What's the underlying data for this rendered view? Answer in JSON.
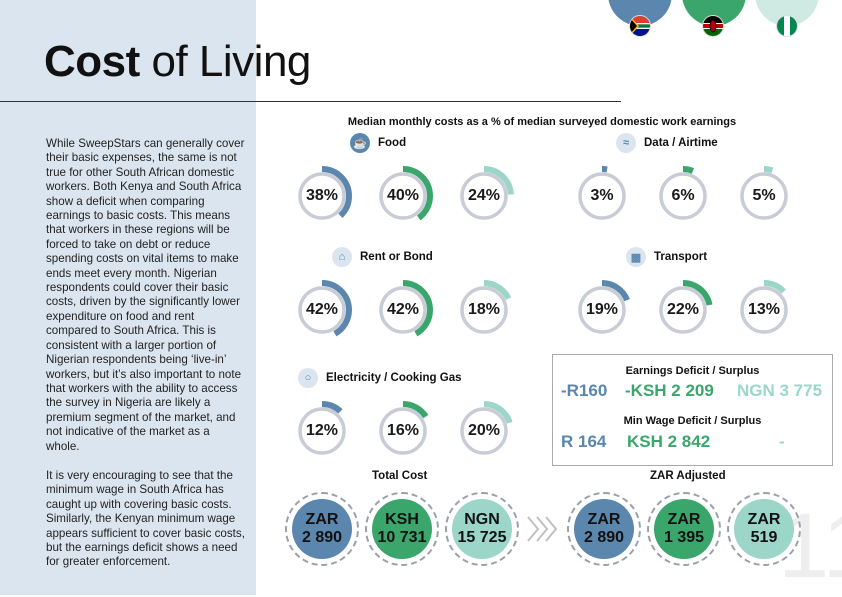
{
  "page": {
    "title_bold": "Cost",
    "title_rest": " of Living",
    "page_number": "11"
  },
  "body": {
    "paragraph_1": "While SweepStars can generally cover their basic expenses, the same is not true for other South African domestic workers. Both Kenya and South Africa show a deficit when comparing earnings to basic costs. This means that workers in these regions will be forced to take on debt or reduce spending costs on vital items to make ends meet every month. Nigerian respondents could cover their basic costs, driven by the significantly lower expenditure on food and rent compared to South Africa. This is consistent with a larger portion of Nigerian respondents being ‘live-in’ workers, but it’s also important to note that workers with the ability to access the survey in Nigeria are likely a premium segment of the market, and not indicative of the market as a whole.",
    "paragraph_2": "It is very encouraging to see that the minimum wage in South Africa has caught up with covering basic costs. Similarly, the Kenyan minimum wage appears sufficient to cover basic costs, but the earnings deficit shows a need for greater enforcement."
  },
  "colors": {
    "south_africa": "#5b86ad",
    "kenya": "#3aa66b",
    "nigeria": "#9bd6c8",
    "ring_base": "#c8ccd6",
    "panel": "#dbe5ef"
  },
  "chart_data": {
    "type": "donut",
    "title": "Median monthly costs as a % of median surveyed domestic work earnings",
    "countries": [
      "South Africa",
      "Kenya",
      "Nigeria"
    ],
    "categories": [
      {
        "label": "Food",
        "icon": "food-icon",
        "values": [
          38,
          40,
          24
        ],
        "display": [
          "38%",
          "40%",
          "24%"
        ]
      },
      {
        "label": "Data / Airtime",
        "icon": "wifi-icon",
        "values": [
          3,
          6,
          5
        ],
        "display": [
          "3%",
          "6%",
          "5%"
        ]
      },
      {
        "label": "Rent or Bond",
        "icon": "house-icon",
        "values": [
          42,
          42,
          18
        ],
        "display": [
          "42%",
          "42%",
          "18%"
        ]
      },
      {
        "label": "Transport",
        "icon": "car-icon",
        "values": [
          19,
          22,
          13
        ],
        "display": [
          "19%",
          "22%",
          "13%"
        ]
      },
      {
        "label": "Electricity / Cooking Gas",
        "icon": "lightbulb-icon",
        "values": [
          12,
          16,
          20
        ],
        "display": [
          "12%",
          "16%",
          "20%"
        ]
      }
    ]
  },
  "deficits": {
    "earnings_title": "Earnings Deficit / Surplus",
    "earnings": [
      "-R160",
      "-KSH 2 209",
      "NGN 3 775"
    ],
    "minwage_title": "Min Wage Deficit / Surplus",
    "minwage": [
      "R 164",
      "KSH 2 842",
      "-"
    ]
  },
  "totals": {
    "total_label": "Total Cost",
    "adjusted_label": "ZAR Adjusted",
    "total": [
      {
        "currency": "ZAR",
        "amount": "2 890"
      },
      {
        "currency": "KSH",
        "amount": "10 731"
      },
      {
        "currency": "NGN",
        "amount": "15 725"
      }
    ],
    "adjusted": [
      {
        "currency": "ZAR",
        "amount": "2 890"
      },
      {
        "currency": "ZAR",
        "amount": "1 395"
      },
      {
        "currency": "ZAR",
        "amount": "519"
      }
    ]
  }
}
